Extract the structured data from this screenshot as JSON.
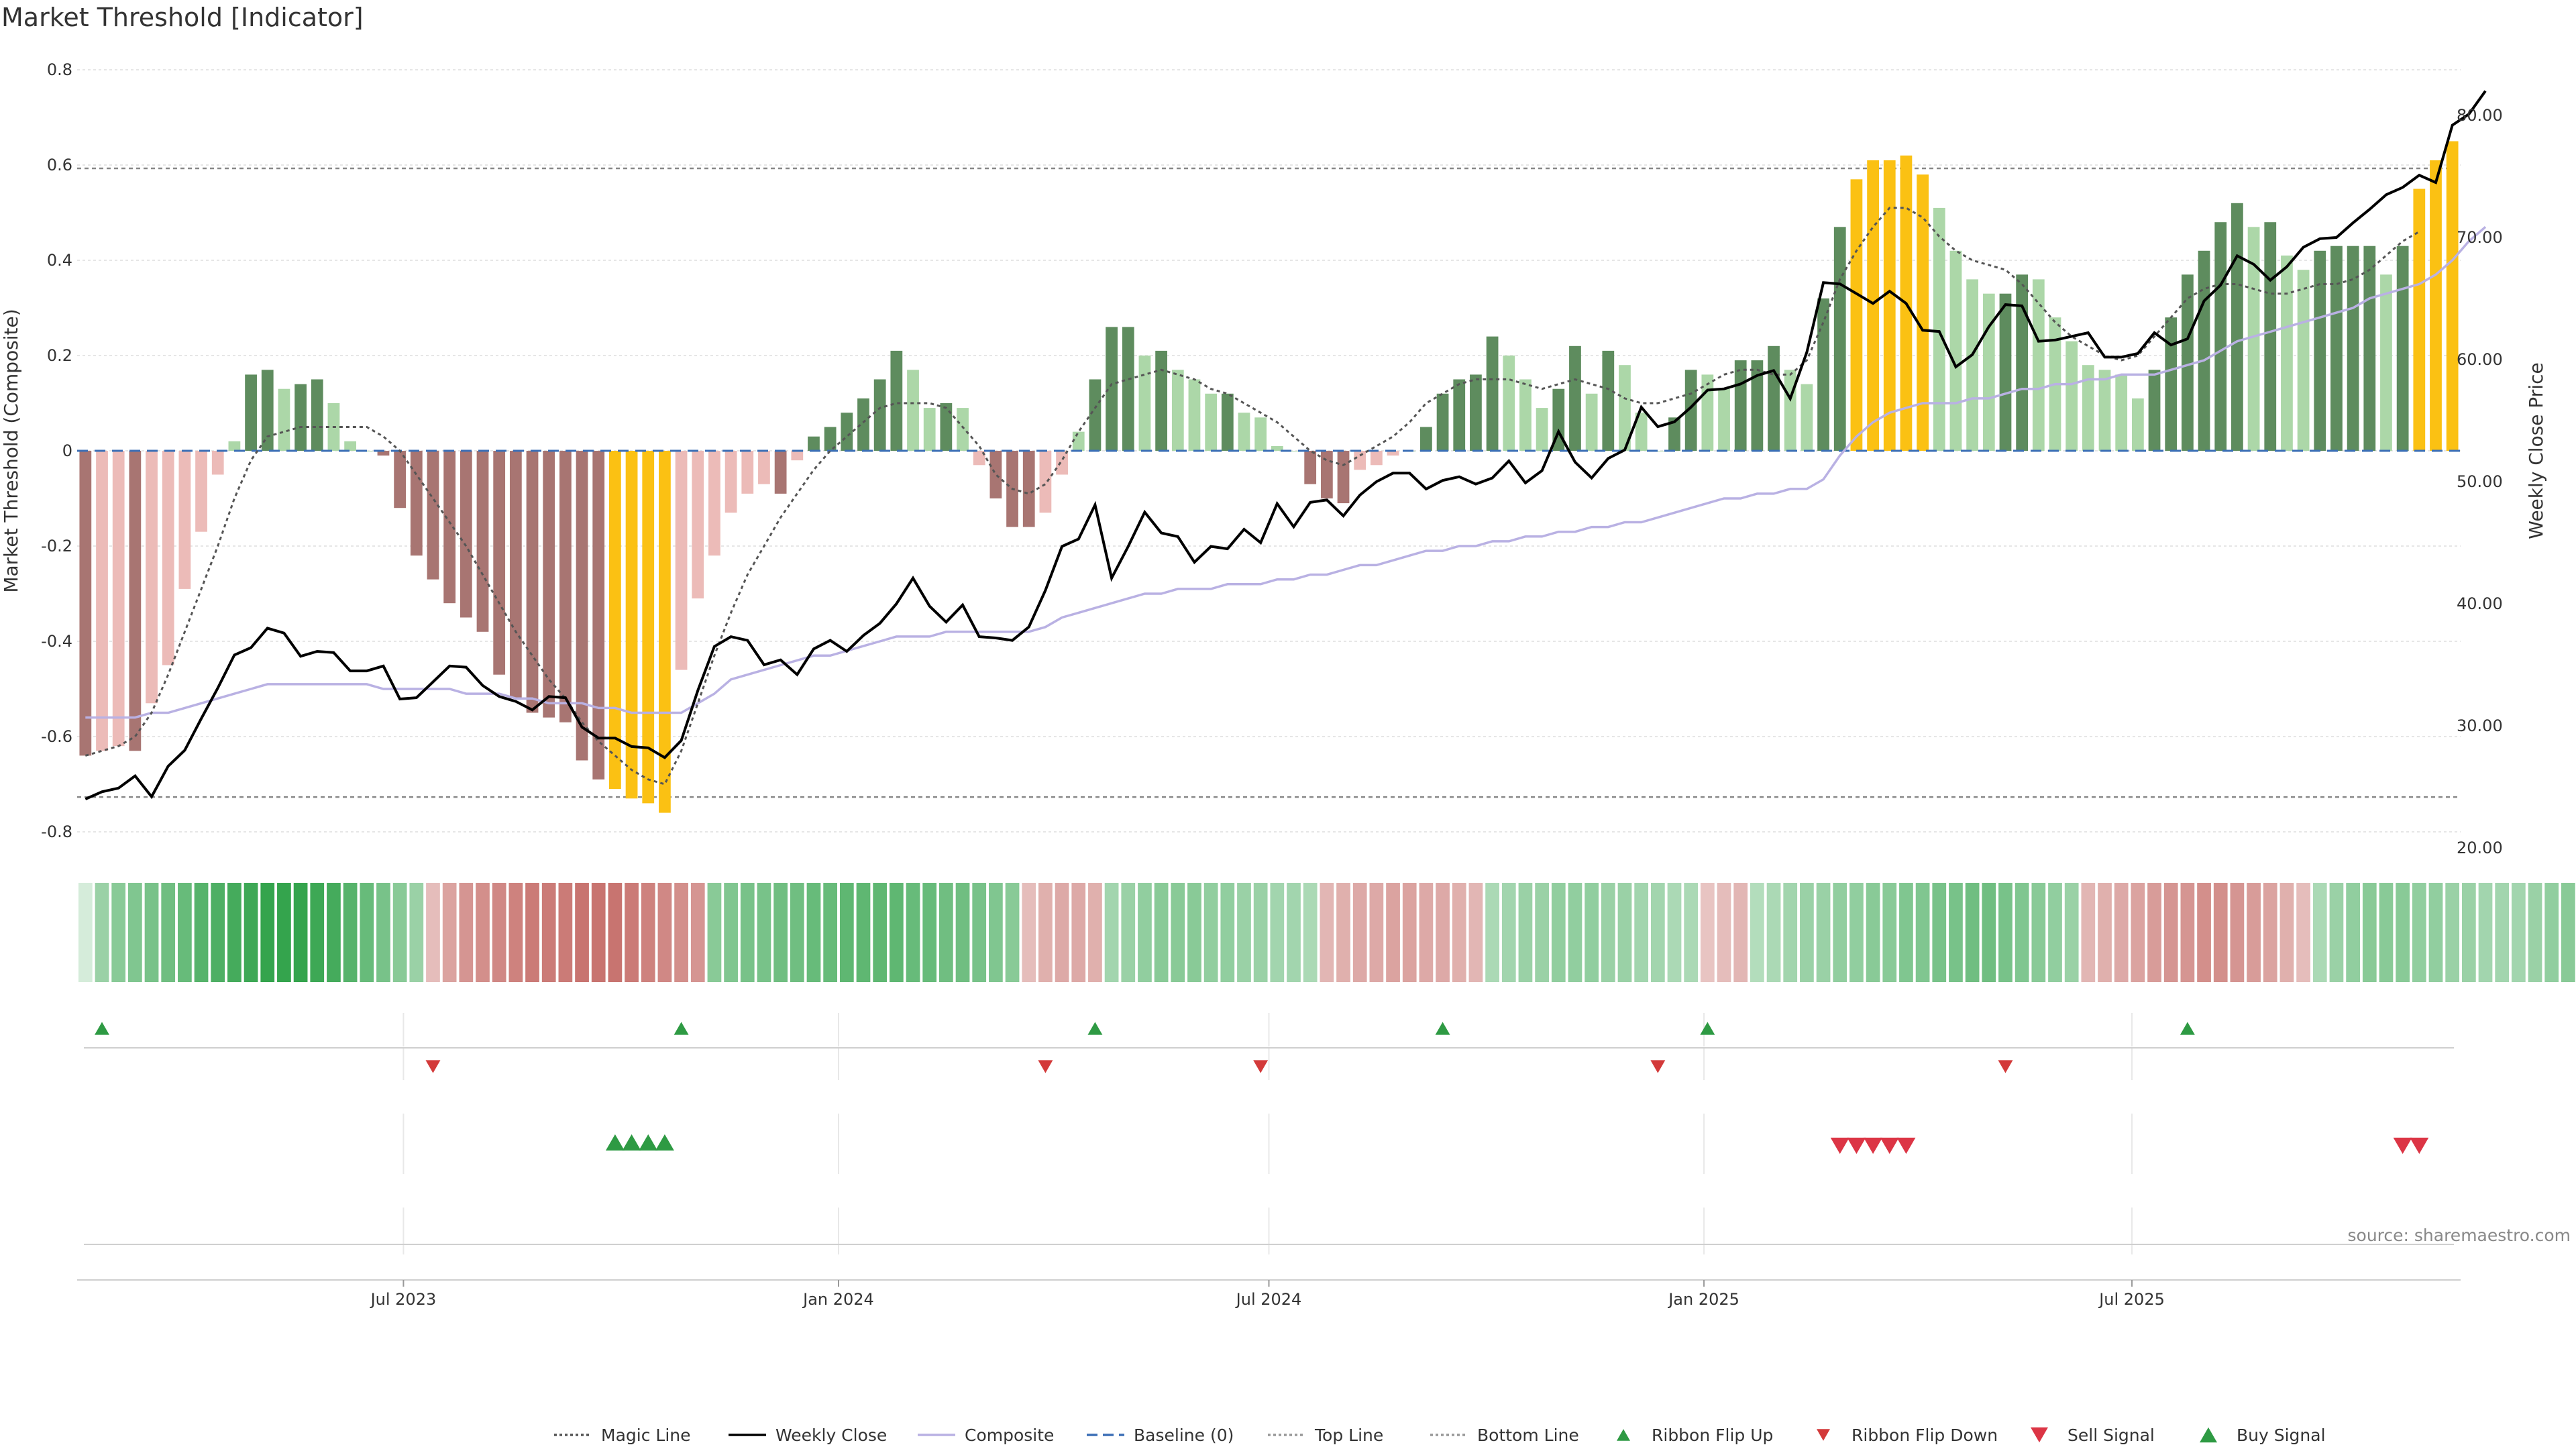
{
  "title": "Market Threshold [Indicator]",
  "source": "source: sharemaestro.com",
  "colors": {
    "strong_pos": "#5e8c5e",
    "weak_pos": "#acd7a8",
    "strong_neg": "#a87572",
    "weak_neg": "#ecbbb8",
    "extreme": "#fbc113",
    "magic": "#555555",
    "close": "#000000",
    "composite": "#b9b1e3",
    "baseline": "#3b6fb6",
    "up": "#2e9a43",
    "down": "#d33a3a",
    "sell": "#dc3545",
    "buy": "#2e9a43"
  },
  "chart_data": {
    "type": "bar",
    "title": "Market Threshold [Indicator]",
    "ylabel_left": "Market Threshold (Composite)",
    "ylabel_right": "Weekly Close Price",
    "ylim_left": [
      -0.82,
      0.82
    ],
    "ylim_right": [
      20,
      82
    ],
    "left_ticks": [
      "0.8",
      "0.6",
      "0.4",
      "0.2",
      "0",
      "-0.2",
      "-0.4",
      "-0.6",
      "-0.8"
    ],
    "right_ticks": [
      "20.00",
      "30.00",
      "40.00",
      "50.00",
      "60.00",
      "70.00",
      "80.00"
    ],
    "x_ticks": [
      "Jul 2023",
      "Jan 2024",
      "Jul 2024",
      "Jan 2025",
      "Jul 2025"
    ],
    "start_date": "2023-02-13",
    "week_step": 1,
    "top_line": 0.593,
    "bottom_line": -0.727,
    "histogram": [
      -0.64,
      -0.63,
      -0.62,
      -0.63,
      -0.53,
      -0.45,
      -0.29,
      -0.17,
      -0.05,
      0.02,
      0.16,
      0.17,
      0.13,
      0.14,
      0.15,
      0.1,
      0.02,
      0,
      -0.01,
      -0.12,
      -0.22,
      -0.27,
      -0.32,
      -0.35,
      -0.38,
      -0.47,
      -0.52,
      -0.55,
      -0.56,
      -0.57,
      -0.65,
      -0.69,
      -0.71,
      -0.73,
      -0.74,
      -0.76,
      -0.46,
      -0.31,
      -0.22,
      -0.13,
      -0.09,
      -0.07,
      -0.09,
      -0.02,
      0.03,
      0.05,
      0.08,
      0.11,
      0.15,
      0.21,
      0.17,
      0.09,
      0.1,
      0.09,
      -0.03,
      -0.1,
      -0.16,
      -0.16,
      -0.13,
      -0.05,
      0.04,
      0.15,
      0.26,
      0.26,
      0.2,
      0.21,
      0.17,
      0.15,
      0.12,
      0.12,
      0.08,
      0.07,
      0.01,
      0,
      -0.07,
      -0.1,
      -0.11,
      -0.04,
      -0.03,
      -0.01,
      0,
      0.05,
      0.12,
      0.15,
      0.16,
      0.24,
      0.2,
      0.15,
      0.09,
      0.13,
      0.22,
      0.12,
      0.21,
      0.18,
      0.08,
      0,
      0.07,
      0.17,
      0.16,
      0.13,
      0.19,
      0.19,
      0.22,
      0.17,
      0.14,
      0.32,
      0.47,
      0.57,
      0.61,
      0.61,
      0.62,
      0.58,
      0.51,
      0.42,
      0.36,
      0.33,
      0.33,
      0.37,
      0.36,
      0.28,
      0.23,
      0.18,
      0.17,
      0.16,
      0.11,
      0.17,
      0.28,
      0.37,
      0.42,
      0.48,
      0.52,
      0.47,
      0.48,
      0.41,
      0.38,
      0.42,
      0.43,
      0.43,
      0.43,
      0.37,
      0.43,
      0.55,
      0.61,
      0.65
    ],
    "magic_line": [
      -0.64,
      -0.63,
      -0.62,
      -0.6,
      -0.55,
      -0.47,
      -0.38,
      -0.29,
      -0.2,
      -0.1,
      -0.02,
      0.03,
      0.04,
      0.05,
      0.05,
      0.05,
      0.05,
      0.05,
      0.03,
      0,
      -0.05,
      -0.1,
      -0.15,
      -0.2,
      -0.26,
      -0.32,
      -0.38,
      -0.43,
      -0.48,
      -0.52,
      -0.57,
      -0.61,
      -0.64,
      -0.67,
      -0.69,
      -0.7,
      -0.63,
      -0.53,
      -0.43,
      -0.34,
      -0.26,
      -0.2,
      -0.14,
      -0.09,
      -0.04,
      0,
      0.03,
      0.06,
      0.09,
      0.1,
      0.1,
      0.1,
      0.09,
      0.05,
      0.01,
      -0.05,
      -0.08,
      -0.09,
      -0.07,
      -0.02,
      0.04,
      0.09,
      0.14,
      0.15,
      0.16,
      0.17,
      0.16,
      0.15,
      0.13,
      0.12,
      0.1,
      0.08,
      0.06,
      0.03,
      0,
      -0.02,
      -0.03,
      -0.01,
      0.01,
      0.03,
      0.06,
      0.1,
      0.12,
      0.14,
      0.15,
      0.15,
      0.15,
      0.14,
      0.13,
      0.14,
      0.15,
      0.14,
      0.13,
      0.11,
      0.1,
      0.1,
      0.11,
      0.12,
      0.14,
      0.16,
      0.17,
      0.17,
      0.16,
      0.16,
      0.19,
      0.27,
      0.36,
      0.42,
      0.47,
      0.51,
      0.51,
      0.49,
      0.45,
      0.42,
      0.4,
      0.39,
      0.38,
      0.35,
      0.31,
      0.27,
      0.24,
      0.22,
      0.2,
      0.19,
      0.2,
      0.24,
      0.28,
      0.32,
      0.34,
      0.35,
      0.35,
      0.34,
      0.33,
      0.33,
      0.34,
      0.35,
      0.35,
      0.36,
      0.38,
      0.41,
      0.44,
      0.46
    ],
    "weekly_close": [
      24.0,
      24.6,
      24.9,
      25.9,
      24.2,
      26.7,
      28.0,
      30.6,
      33.1,
      35.8,
      36.4,
      38.0,
      37.6,
      35.7,
      36.1,
      36.0,
      34.5,
      34.5,
      34.9,
      32.2,
      32.3,
      33.6,
      34.9,
      34.8,
      33.3,
      32.4,
      32.0,
      31.3,
      32.4,
      32.3,
      29.9,
      29.0,
      29.0,
      28.3,
      28.2,
      27.4,
      28.8,
      32.9,
      36.5,
      37.3,
      37.0,
      35.0,
      35.4,
      34.2,
      36.3,
      37.0,
      36.1,
      37.4,
      38.4,
      40.0,
      42.1,
      39.8,
      38.5,
      39.9,
      37.3,
      37.2,
      37.0,
      38.1,
      41.1,
      44.7,
      45.3,
      48.1,
      42.1,
      44.7,
      47.5,
      45.8,
      45.5,
      43.4,
      44.7,
      44.5,
      46.1,
      45.0,
      48.2,
      46.3,
      48.3,
      48.5,
      47.2,
      48.9,
      50.0,
      50.7,
      50.7,
      49.4,
      50.1,
      50.4,
      49.8,
      50.3,
      51.7,
      49.9,
      50.9,
      54.1,
      51.6,
      50.3,
      51.9,
      52.6,
      56.1,
      54.5,
      54.9,
      56.1,
      57.5,
      57.6,
      58.0,
      58.7,
      59.1,
      56.8,
      60.6,
      66.3,
      66.2,
      65.4,
      64.6,
      65.6,
      64.6,
      62.4,
      62.3,
      59.4,
      60.4,
      62.7,
      64.5,
      64.4,
      61.5,
      61.6,
      61.9,
      62.2,
      60.2,
      60.2,
      60.5,
      62.2,
      61.2,
      61.7,
      64.8,
      66.1,
      68.5,
      67.8,
      66.5,
      67.6,
      69.2,
      69.9,
      70.0,
      71.2,
      72.3,
      73.5,
      74.1,
      75.1,
      74.5,
      79.2,
      80.1,
      82.0
    ],
    "composite": [
      -0.56,
      -0.56,
      -0.56,
      -0.56,
      -0.55,
      -0.55,
      -0.54,
      -0.53,
      -0.52,
      -0.51,
      -0.5,
      -0.49,
      -0.49,
      -0.49,
      -0.49,
      -0.49,
      -0.49,
      -0.49,
      -0.5,
      -0.5,
      -0.5,
      -0.5,
      -0.5,
      -0.51,
      -0.51,
      -0.51,
      -0.52,
      -0.52,
      -0.53,
      -0.53,
      -0.53,
      -0.54,
      -0.54,
      -0.55,
      -0.55,
      -0.55,
      -0.55,
      -0.53,
      -0.51,
      -0.48,
      -0.47,
      -0.46,
      -0.45,
      -0.44,
      -0.43,
      -0.43,
      -0.42,
      -0.41,
      -0.4,
      -0.39,
      -0.39,
      -0.39,
      -0.38,
      -0.38,
      -0.38,
      -0.38,
      -0.38,
      -0.38,
      -0.37,
      -0.35,
      -0.34,
      -0.33,
      -0.32,
      -0.31,
      -0.3,
      -0.3,
      -0.29,
      -0.29,
      -0.29,
      -0.28,
      -0.28,
      -0.28,
      -0.27,
      -0.27,
      -0.26,
      -0.26,
      -0.25,
      -0.24,
      -0.24,
      -0.23,
      -0.22,
      -0.21,
      -0.21,
      -0.2,
      -0.2,
      -0.19,
      -0.19,
      -0.18,
      -0.18,
      -0.17,
      -0.17,
      -0.16,
      -0.16,
      -0.15,
      -0.15,
      -0.14,
      -0.13,
      -0.12,
      -0.11,
      -0.1,
      -0.1,
      -0.09,
      -0.09,
      -0.08,
      -0.08,
      -0.06,
      -0.01,
      0.03,
      0.06,
      0.08,
      0.09,
      0.1,
      0.1,
      0.1,
      0.11,
      0.11,
      0.12,
      0.13,
      0.13,
      0.14,
      0.14,
      0.15,
      0.15,
      0.16,
      0.16,
      0.16,
      0.17,
      0.18,
      0.19,
      0.21,
      0.23,
      0.24,
      0.25,
      0.26,
      0.27,
      0.28,
      0.29,
      0.3,
      0.32,
      0.33,
      0.34,
      0.35,
      0.37,
      0.4,
      0.44,
      0.47
    ],
    "ribbon": [
      0,
      0.35,
      0.45,
      0.5,
      0.55,
      0.6,
      0.65,
      0.75,
      0.8,
      0.85,
      0.9,
      0.95,
      0.95,
      0.95,
      0.9,
      0.85,
      0.75,
      0.65,
      0.55,
      0.45,
      0.35,
      -0.25,
      -0.45,
      -0.55,
      -0.6,
      -0.65,
      -0.7,
      -0.75,
      -0.75,
      -0.75,
      -0.8,
      -0.8,
      -0.8,
      -0.75,
      -0.7,
      -0.65,
      -0.6,
      -0.55,
      0.45,
      0.5,
      0.55,
      0.55,
      0.6,
      0.6,
      0.65,
      0.65,
      0.7,
      0.7,
      0.7,
      0.7,
      0.65,
      0.65,
      0.6,
      0.6,
      0.55,
      0.5,
      0.45,
      -0.25,
      -0.35,
      -0.4,
      -0.4,
      -0.35,
      0.3,
      0.35,
      0.4,
      0.45,
      0.45,
      0.45,
      0.4,
      0.4,
      0.35,
      0.35,
      0.3,
      0.3,
      0.25,
      -0.3,
      -0.35,
      -0.4,
      -0.4,
      -0.45,
      -0.45,
      -0.4,
      -0.4,
      -0.35,
      -0.3,
      0.25,
      0.3,
      0.35,
      0.35,
      0.4,
      0.4,
      0.4,
      0.35,
      0.35,
      0.3,
      0.3,
      0.25,
      0.25,
      -0.2,
      -0.25,
      -0.3,
      0.2,
      0.25,
      0.3,
      0.35,
      0.35,
      0.4,
      0.4,
      0.45,
      0.45,
      0.5,
      0.5,
      0.55,
      0.55,
      0.6,
      0.6,
      0.55,
      0.5,
      0.45,
      0.4,
      0.35,
      -0.3,
      -0.35,
      -0.4,
      -0.45,
      -0.5,
      -0.55,
      -0.55,
      -0.6,
      -0.6,
      -0.55,
      -0.5,
      -0.45,
      -0.35,
      -0.25,
      0.25,
      0.35,
      0.4,
      0.45,
      0.45,
      0.45,
      0.4,
      0.4,
      0.35,
      0.35,
      0.3,
      0.3,
      0.3,
      0.35,
      0.4,
      0.45
    ],
    "ribbon_flip_up": [
      "2023-02-20",
      "2023-10-23",
      "2024-04-15",
      "2024-09-09",
      "2024-12-30",
      "2025-07-21"
    ],
    "ribbon_flip_down": [
      "2023-07-10",
      "2024-03-25",
      "2024-06-24",
      "2024-12-09",
      "2025-05-05"
    ],
    "buy_signals": [
      "2023-09-25",
      "2023-10-02",
      "2023-10-09",
      "2023-10-16"
    ],
    "sell_signals": [
      "2025-02-24",
      "2025-03-03",
      "2025-03-10",
      "2025-03-17",
      "2025-03-24",
      "2025-10-20",
      "2025-10-27"
    ]
  },
  "legend": [
    {
      "label": "Magic Line",
      "kind": "dotted",
      "color": "#555555"
    },
    {
      "label": "Weekly Close",
      "kind": "solid",
      "color": "#000000"
    },
    {
      "label": "Composite",
      "kind": "solid",
      "color": "#b9b1e3"
    },
    {
      "label": "Baseline (0)",
      "kind": "dashed",
      "color": "#3b6fb6"
    },
    {
      "label": "Top Line",
      "kind": "dotted",
      "color": "#999999"
    },
    {
      "label": "Bottom Line",
      "kind": "dotted",
      "color": "#999999"
    },
    {
      "label": "Ribbon Flip Up",
      "kind": "tri-up-small",
      "color": "#2e9a43"
    },
    {
      "label": "Ribbon Flip Down",
      "kind": "tri-down-small",
      "color": "#d33a3a"
    },
    {
      "label": "Sell Signal",
      "kind": "tri-down",
      "color": "#dc3545"
    },
    {
      "label": "Buy Signal",
      "kind": "tri-up",
      "color": "#2e9a43"
    }
  ]
}
